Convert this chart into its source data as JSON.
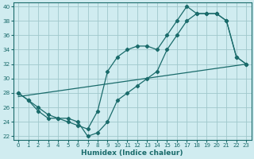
{
  "xlabel": "Humidex (Indice chaleur)",
  "xlim": [
    -0.5,
    23.5
  ],
  "ylim": [
    21.5,
    40.5
  ],
  "yticks": [
    22,
    24,
    26,
    28,
    30,
    32,
    34,
    36,
    38,
    40
  ],
  "xticks": [
    0,
    1,
    2,
    3,
    4,
    5,
    6,
    7,
    8,
    9,
    10,
    11,
    12,
    13,
    14,
    15,
    16,
    17,
    18,
    19,
    20,
    21,
    22,
    23
  ],
  "line_color": "#1a6b6b",
  "bg_color": "#d0ecf0",
  "grid_color": "#a0c8cc",
  "line1_x": [
    0,
    1,
    2,
    3,
    4,
    5,
    6,
    7,
    8,
    9,
    10,
    11,
    12,
    13,
    14,
    15,
    16,
    17,
    18,
    19,
    20,
    21,
    22,
    23
  ],
  "line1_y": [
    28,
    27,
    26,
    25,
    24.5,
    24,
    23.5,
    23,
    25.5,
    31,
    33,
    34,
    34.5,
    34.5,
    34,
    36,
    38,
    40,
    39,
    39,
    39,
    38,
    33,
    32
  ],
  "line2_x": [
    0,
    1,
    2,
    3,
    4,
    5,
    6,
    7,
    8,
    9,
    10,
    11,
    12,
    13,
    14,
    15,
    16,
    17,
    18,
    19,
    20,
    21,
    22,
    23
  ],
  "line2_y": [
    28,
    27,
    25.5,
    24.5,
    24.5,
    24.5,
    24,
    22,
    22.5,
    24,
    27,
    28,
    29,
    30,
    31,
    34,
    36,
    38,
    39,
    39,
    39,
    38,
    33,
    32
  ],
  "line3_x": [
    0,
    23
  ],
  "line3_y": [
    27.5,
    32
  ]
}
